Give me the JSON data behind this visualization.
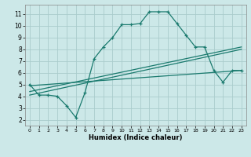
{
  "title": "",
  "xlabel": "Humidex (Indice chaleur)",
  "background_color": "#cce8e8",
  "grid_color": "#aacccc",
  "line_color": "#1a7a6e",
  "xlim": [
    -0.5,
    23.5
  ],
  "ylim": [
    1.5,
    11.8
  ],
  "yticks": [
    2,
    3,
    4,
    5,
    6,
    7,
    8,
    9,
    10,
    11
  ],
  "xticks": [
    0,
    1,
    2,
    3,
    4,
    5,
    6,
    7,
    8,
    9,
    10,
    11,
    12,
    13,
    14,
    15,
    16,
    17,
    18,
    19,
    20,
    21,
    22,
    23
  ],
  "series1_x": [
    0,
    1,
    2,
    3,
    4,
    5,
    6,
    7,
    8,
    9,
    10,
    11,
    12,
    13,
    14,
    15,
    16,
    17,
    18,
    19,
    20,
    21,
    22,
    23
  ],
  "series1_y": [
    5.0,
    4.1,
    4.1,
    4.0,
    3.2,
    2.2,
    4.3,
    7.2,
    8.2,
    9.0,
    10.1,
    10.1,
    10.2,
    11.2,
    11.2,
    11.2,
    10.2,
    9.2,
    8.2,
    8.2,
    6.2,
    5.2,
    6.2,
    6.2
  ],
  "series2_x": [
    0,
    23
  ],
  "series2_y": [
    4.1,
    8.0
  ],
  "series3_x": [
    0,
    23
  ],
  "series3_y": [
    4.4,
    8.2
  ],
  "series4_x": [
    0,
    23
  ],
  "series4_y": [
    4.9,
    6.2
  ]
}
